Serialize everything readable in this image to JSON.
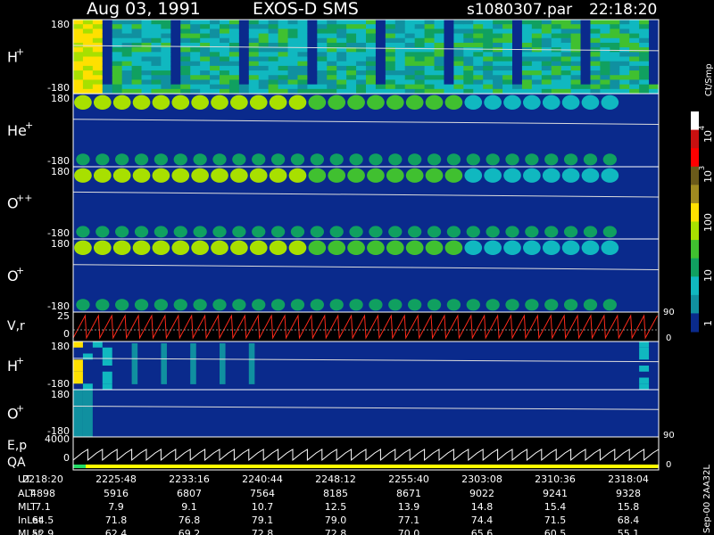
{
  "header": {
    "date": "Aug 03, 1991",
    "mission": "EXOS-D SMS",
    "file": "s1080307.par",
    "time": "22:18:20"
  },
  "colors": {
    "background": "#000000",
    "panel_fill": "#0a2a8c",
    "trace_red": "#ff2a1a",
    "trace_white": "#ffffff",
    "flag_yellow": "#ffff00",
    "flag_green": "#22dd66"
  },
  "chart_data": [
    {
      "type": "heatmap",
      "species": "H",
      "charge": "+",
      "ymax_label": "180",
      "ymin_label": "-180",
      "description_level": "high"
    },
    {
      "type": "heatmap",
      "species": "He",
      "charge": "+",
      "ymax_label": "180",
      "ymin_label": "-180"
    },
    {
      "type": "heatmap",
      "species": "O",
      "charge": "++",
      "ymax_label": "180",
      "ymin_label": "-180"
    },
    {
      "type": "heatmap",
      "species": "O",
      "charge": "+",
      "ymax_label": "180",
      "ymin_label": "-180"
    },
    {
      "type": "line",
      "label": "V,r",
      "y_tick_top": "25",
      "y_tick_mid": "0",
      "right_tick": "90",
      "right_tick_bottom": "0"
    },
    {
      "type": "heatmap",
      "species": "H",
      "charge": "+",
      "ymax_label": "180",
      "ymin_label": "-180"
    },
    {
      "type": "heatmap",
      "species": "O",
      "charge": "+",
      "ymax_label": "180",
      "ymin_label": "-180",
      "right_tick": "90"
    },
    {
      "type": "line",
      "label_top": "E,p",
      "label_bottom": "QA",
      "y_tick_top": "4000",
      "y_tick_mid": "0",
      "right_tick": "0"
    }
  ],
  "colorbar": {
    "unit": "Ct/Smp",
    "tick_1e4_base": "10",
    "tick_1e4_exp": "4",
    "tick_1e3_base": "10",
    "tick_1e3_exp": "3",
    "tick_100": "100",
    "tick_10": "10",
    "tick_1": "1",
    "colors": [
      "#ffffff",
      "#c81010",
      "#ff0000",
      "#6b5a1a",
      "#a08a20",
      "#ffe000",
      "#a8e000",
      "#40c030",
      "#10a060",
      "#10b8c0",
      "#1090a0",
      "#0a2a8c"
    ]
  },
  "footer": {
    "row_labels": [
      "UT",
      "ALT",
      "MLT",
      "InLat",
      "MLat"
    ],
    "columns": [
      {
        "UT": "2218:20",
        "ALT": "4898",
        "MLT": "7.1",
        "InLat": "64.5",
        "MLat": "52.9"
      },
      {
        "UT": "2225:48",
        "ALT": "5916",
        "MLT": "7.9",
        "InLat": "71.8",
        "MLat": "62.4"
      },
      {
        "UT": "2233:16",
        "ALT": "6807",
        "MLT": "9.1",
        "InLat": "76.8",
        "MLat": "69.2"
      },
      {
        "UT": "2240:44",
        "ALT": "7564",
        "MLT": "10.7",
        "InLat": "79.1",
        "MLat": "72.8"
      },
      {
        "UT": "2248:12",
        "ALT": "8185",
        "MLT": "12.5",
        "InLat": "79.0",
        "MLat": "72.8"
      },
      {
        "UT": "2255:40",
        "ALT": "8671",
        "MLT": "13.9",
        "InLat": "77.1",
        "MLat": "70.0"
      },
      {
        "UT": "2303:08",
        "ALT": "9022",
        "MLT": "14.8",
        "InLat": "74.4",
        "MLat": "65.6"
      },
      {
        "UT": "2310:36",
        "ALT": "9241",
        "MLT": "15.4",
        "InLat": "71.5",
        "MLat": "60.5"
      },
      {
        "UT": "2318:04",
        "ALT": "9328",
        "MLT": "15.8",
        "InLat": "68.4",
        "MLat": "55.1"
      }
    ],
    "side_text": "Sep-00  2AA32L"
  }
}
